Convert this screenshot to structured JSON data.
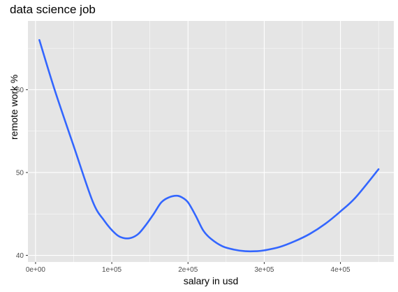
{
  "chart_data": {
    "type": "line",
    "title": "data science job",
    "xlabel": "salary in usd",
    "ylabel": "remote work %",
    "xlim": [
      -10000,
      470000
    ],
    "ylim": [
      39.2,
      68.3
    ],
    "x_ticks": [
      0,
      100000,
      200000,
      300000,
      400000
    ],
    "x_tick_labels": [
      "0e+00",
      "1e+05",
      "2e+05",
      "3e+05",
      "4e+05"
    ],
    "y_ticks": [
      40,
      50,
      60
    ],
    "y_tick_labels": [
      "40",
      "50",
      "60"
    ],
    "grid": true,
    "colors": {
      "line": "#3366ff",
      "panel": "#e5e5e5",
      "grid": "#ffffff",
      "tick_text": "#4d4d4d"
    },
    "series": [
      {
        "x": [
          5000,
          25000,
          50000,
          75000,
          90000,
          105000,
          115000,
          125000,
          135000,
          145000,
          155000,
          165000,
          175000,
          185000,
          192000,
          200000,
          210000,
          220000,
          230000,
          245000,
          260000,
          275000,
          290000,
          300000,
          320000,
          340000,
          360000,
          380000,
          400000,
          420000,
          450000
        ],
        "y": [
          66.0,
          60.0,
          53.2,
          46.5,
          44.2,
          42.6,
          42.1,
          42.1,
          42.6,
          43.7,
          45.0,
          46.4,
          47.0,
          47.2,
          47.0,
          46.4,
          44.8,
          43.0,
          42.0,
          41.1,
          40.7,
          40.5,
          40.5,
          40.6,
          41.0,
          41.7,
          42.6,
          43.8,
          45.3,
          47.0,
          50.4
        ]
      }
    ]
  }
}
